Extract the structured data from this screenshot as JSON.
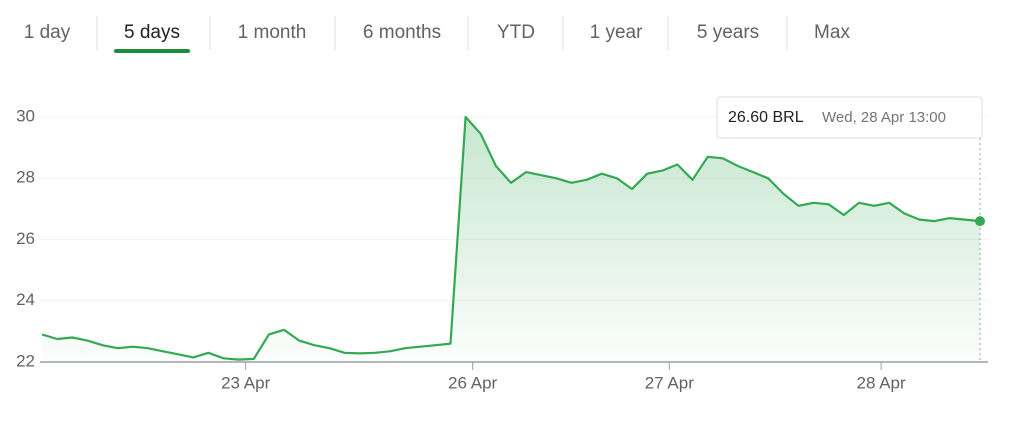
{
  "tabs": [
    "1 day",
    "5 days",
    "1 month",
    "6 months",
    "YTD",
    "1 year",
    "5 years",
    "Max"
  ],
  "active_tab": 1,
  "chart_data": {
    "type": "line",
    "color": "#34a853",
    "categories": [
      null,
      null,
      null,
      null,
      null,
      null,
      null,
      null,
      null,
      null,
      null,
      null,
      null,
      "23 Apr",
      null,
      null,
      null,
      null,
      null,
      null,
      null,
      null,
      null,
      null,
      null,
      null,
      null,
      null,
      "26 Apr",
      null,
      null,
      null,
      null,
      null,
      null,
      null,
      null,
      null,
      null,
      null,
      null,
      "27 Apr",
      null,
      null,
      null,
      null,
      null,
      null,
      null,
      null,
      null,
      null,
      null,
      null,
      null,
      "28 Apr",
      null,
      null,
      null,
      null,
      null,
      null,
      null
    ],
    "values": [
      22.9,
      22.75,
      22.8,
      22.7,
      22.55,
      22.45,
      22.5,
      22.45,
      22.35,
      22.25,
      22.15,
      22.3,
      22.12,
      22.08,
      22.1,
      22.9,
      23.05,
      22.7,
      22.55,
      22.45,
      22.3,
      22.28,
      22.3,
      22.35,
      22.45,
      22.5,
      22.55,
      22.6,
      30.0,
      29.45,
      28.4,
      27.85,
      28.2,
      28.1,
      28.0,
      27.85,
      27.95,
      28.15,
      28.0,
      27.65,
      28.15,
      28.25,
      28.45,
      27.95,
      28.7,
      28.65,
      28.4,
      28.2,
      28.0,
      27.5,
      27.1,
      27.2,
      27.15,
      26.8,
      27.2,
      27.1,
      27.2,
      26.85,
      26.65,
      26.6,
      26.7,
      26.65,
      26.6
    ],
    "ylim": [
      22,
      30
    ],
    "yticks": [
      22,
      24,
      26,
      28,
      30
    ],
    "grid": true,
    "tooltip": {
      "price": "26.60 BRL",
      "time": "Wed, 28 Apr 13:00"
    }
  }
}
